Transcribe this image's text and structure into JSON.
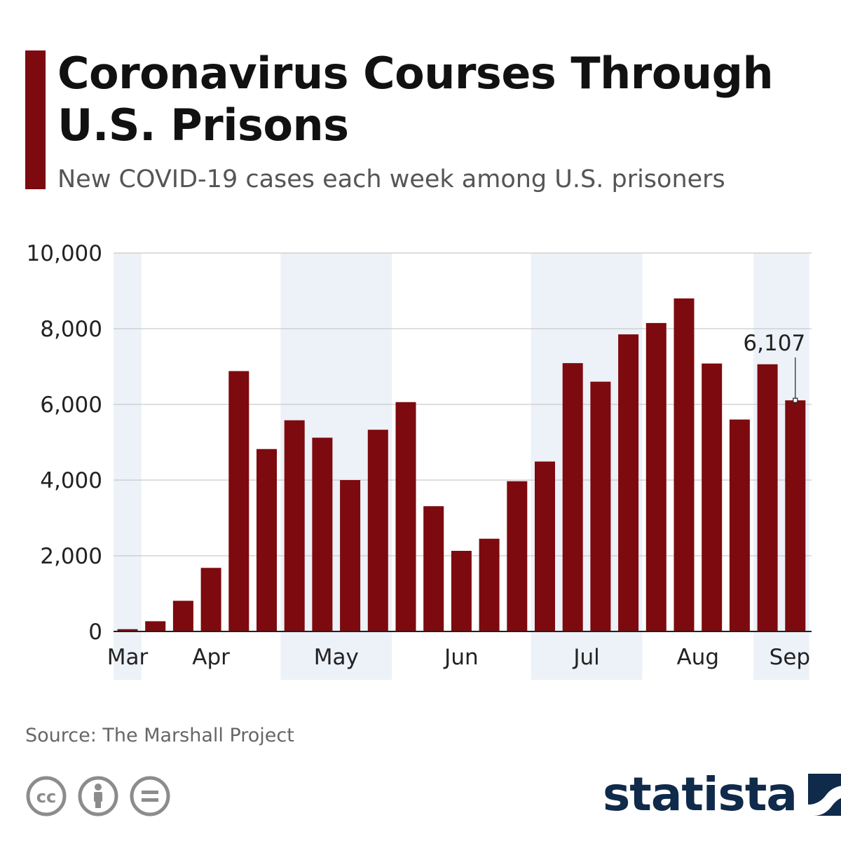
{
  "header": {
    "title": "Coronavirus Courses Through U.S. Prisons",
    "subtitle": "New COVID-19 cases each week among U.S. prisoners"
  },
  "chart_data": {
    "type": "bar",
    "title": "Coronavirus Courses Through U.S. Prisons",
    "subtitle": "New COVID-19 cases each week among U.S. prisoners",
    "xlabel": "",
    "ylabel": "",
    "ylim": [
      0,
      10000
    ],
    "yticks": [
      0,
      2000,
      4000,
      6000,
      8000,
      10000
    ],
    "ytick_labels": [
      "0",
      "2,000",
      "4,000",
      "6,000",
      "8,000",
      "10,000"
    ],
    "grid": true,
    "bar_color": "#7d0a0e",
    "shade_color": "#edf1f8",
    "months": [
      "Mar",
      "Apr",
      "May",
      "Jun",
      "Jul",
      "Aug",
      "Sep"
    ],
    "values": [
      60,
      270,
      810,
      1680,
      6880,
      4820,
      5580,
      5120,
      4000,
      5330,
      6060,
      3310,
      2130,
      2450,
      3970,
      4490,
      7090,
      6600,
      7850,
      8150,
      8800,
      7080,
      5600,
      7060,
      6107
    ],
    "annotation": {
      "index": 24,
      "label": "6,107"
    }
  },
  "footer": {
    "source": "Source: The Marshall Project",
    "brand": "statista",
    "license_icons": [
      "creative-commons-icon",
      "attribution-icon",
      "no-derivatives-icon"
    ]
  }
}
